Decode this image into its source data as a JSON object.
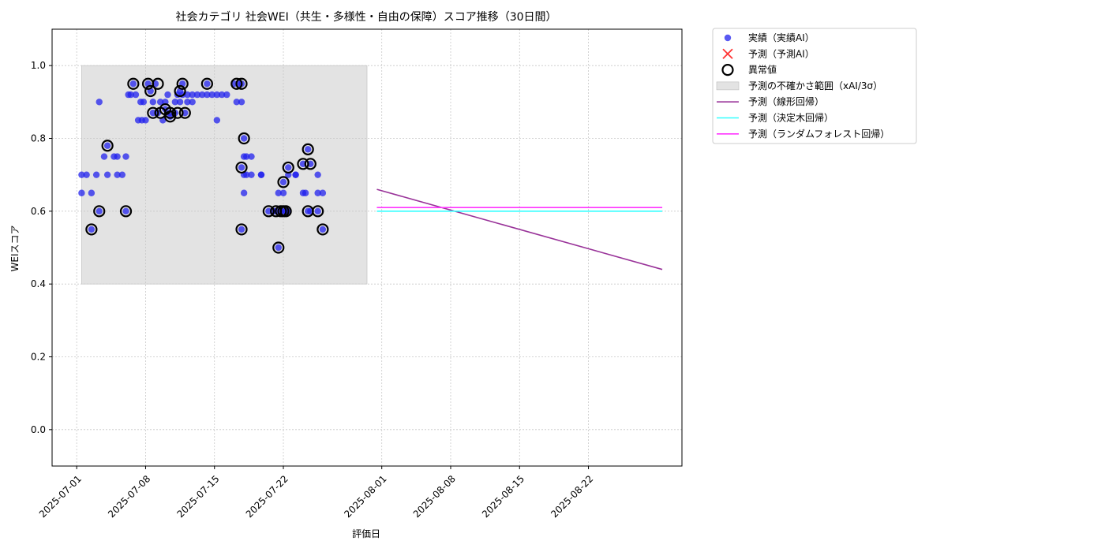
{
  "chart_data": {
    "type": "scatter",
    "title": "社会カテゴリ 社会WEI（共生・多様性・自由の保障）スコア推移（30日間）",
    "xlabel": "評価日",
    "ylabel": "WEIスコア",
    "xlim": [
      "2025-06-28",
      "2025-09-01"
    ],
    "ylim": [
      -0.1,
      1.1
    ],
    "x_ticks": [
      "2025-07-01",
      "2025-07-08",
      "2025-07-15",
      "2025-07-22",
      "2025-08-01",
      "2025-08-08",
      "2025-08-15",
      "2025-08-22"
    ],
    "y_ticks": [
      "0.0",
      "0.2",
      "0.4",
      "0.6",
      "0.8",
      "1.0"
    ],
    "grid": true,
    "legend_position": "outside-top-right",
    "colors": {
      "actual": "#2222ee",
      "forecast": "#ff3333",
      "anomaly": "#000000",
      "band": "#d9d9d9",
      "linear": "#993399",
      "tree": "#33ffff",
      "forest": "#ff33ff"
    },
    "legend": [
      {
        "label": "実績（実績AI）",
        "kind": "dot",
        "color_key": "actual"
      },
      {
        "label": "予測（予測AI）",
        "kind": "cross",
        "color_key": "forecast"
      },
      {
        "label": "異常値",
        "kind": "ring",
        "color_key": "anomaly"
      },
      {
        "label": "予測の不確かさ範囲（xAI/3σ）",
        "kind": "band",
        "color_key": "band"
      },
      {
        "label": "予測（線形回帰）",
        "kind": "line",
        "color_key": "linear"
      },
      {
        "label": "予測（決定木回帰）",
        "kind": "line",
        "color_key": "tree"
      },
      {
        "label": "予測（ランダムフォレスト回帰）",
        "kind": "line",
        "color_key": "forest"
      }
    ],
    "uncertainty_band": {
      "x_start": "2025-07-01T12:00",
      "x_end": "2025-07-30T12:00",
      "y_low": 0.4,
      "y_high": 1.0
    },
    "actual_points": [
      [
        "2025-07-01T12:00",
        0.7
      ],
      [
        "2025-07-01T12:00",
        0.65
      ],
      [
        "2025-07-02T00:00",
        0.7
      ],
      [
        "2025-07-02T12:00",
        0.65
      ],
      [
        "2025-07-02T12:00",
        0.55
      ],
      [
        "2025-07-03T00:00",
        0.7
      ],
      [
        "2025-07-03T07:00",
        0.9
      ],
      [
        "2025-07-03T07:00",
        0.6
      ],
      [
        "2025-07-03T19:00",
        0.75
      ],
      [
        "2025-07-04T03:00",
        0.7
      ],
      [
        "2025-07-04T03:00",
        0.78
      ],
      [
        "2025-07-04T19:00",
        0.75
      ],
      [
        "2025-07-05T03:00",
        0.7
      ],
      [
        "2025-07-05T03:00",
        0.75
      ],
      [
        "2025-07-05T15:00",
        0.7
      ],
      [
        "2025-07-06T00:00",
        0.75
      ],
      [
        "2025-07-06T00:00",
        0.6
      ],
      [
        "2025-07-06T06:00",
        0.92
      ],
      [
        "2025-07-06T12:00",
        0.92
      ],
      [
        "2025-07-06T18:00",
        0.95
      ],
      [
        "2025-07-07T00:00",
        0.92
      ],
      [
        "2025-07-07T06:00",
        0.85
      ],
      [
        "2025-07-07T12:00",
        0.9
      ],
      [
        "2025-07-07T15:00",
        0.85
      ],
      [
        "2025-07-07T19:00",
        0.9
      ],
      [
        "2025-07-08T00:00",
        0.85
      ],
      [
        "2025-07-08T06:00",
        0.95
      ],
      [
        "2025-07-08T12:00",
        0.93
      ],
      [
        "2025-07-08T18:00",
        0.9
      ],
      [
        "2025-07-08T18:00",
        0.87
      ],
      [
        "2025-07-09T00:00",
        0.95
      ],
      [
        "2025-07-09T06:00",
        0.87
      ],
      [
        "2025-07-09T12:00",
        0.9
      ],
      [
        "2025-07-09T18:00",
        0.85
      ],
      [
        "2025-07-10T00:00",
        0.88
      ],
      [
        "2025-07-10T00:00",
        0.9
      ],
      [
        "2025-07-10T06:00",
        0.92
      ],
      [
        "2025-07-10T12:00",
        0.87
      ],
      [
        "2025-07-10T12:00",
        0.86
      ],
      [
        "2025-07-11T00:00",
        0.9
      ],
      [
        "2025-07-11T00:00",
        0.87
      ],
      [
        "2025-07-11T06:00",
        0.92
      ],
      [
        "2025-07-11T12:00",
        0.93
      ],
      [
        "2025-07-11T12:00",
        0.9
      ],
      [
        "2025-07-11T18:00",
        0.95
      ],
      [
        "2025-07-11T18:00",
        0.92
      ],
      [
        "2025-07-12T00:00",
        0.87
      ],
      [
        "2025-07-12T06:00",
        0.92
      ],
      [
        "2025-07-12T06:00",
        0.9
      ],
      [
        "2025-07-12T18:00",
        0.92
      ],
      [
        "2025-07-12T18:00",
        0.9
      ],
      [
        "2025-07-13T06:00",
        0.92
      ],
      [
        "2025-07-13T18:00",
        0.92
      ],
      [
        "2025-07-14T06:00",
        0.95
      ],
      [
        "2025-07-14T06:00",
        0.92
      ],
      [
        "2025-07-14T18:00",
        0.92
      ],
      [
        "2025-07-15T06:00",
        0.85
      ],
      [
        "2025-07-15T06:00",
        0.92
      ],
      [
        "2025-07-15T18:00",
        0.92
      ],
      [
        "2025-07-16T06:00",
        0.92
      ],
      [
        "2025-07-17T00:00",
        0.95
      ],
      [
        "2025-07-17T06:00",
        0.9
      ],
      [
        "2025-07-17T12:00",
        0.95
      ],
      [
        "2025-07-17T18:00",
        0.95
      ],
      [
        "2025-07-17T18:00",
        0.9
      ],
      [
        "2025-07-17T18:00",
        0.72
      ],
      [
        "2025-07-17T18:00",
        0.55
      ],
      [
        "2025-07-18T00:00",
        0.8
      ],
      [
        "2025-07-18T00:00",
        0.75
      ],
      [
        "2025-07-18T00:00",
        0.7
      ],
      [
        "2025-07-18T00:00",
        0.65
      ],
      [
        "2025-07-18T06:00",
        0.7
      ],
      [
        "2025-07-18T06:00",
        0.75
      ],
      [
        "2025-07-18T18:00",
        0.75
      ],
      [
        "2025-07-18T18:00",
        0.7
      ],
      [
        "2025-07-19T18:00",
        0.7
      ],
      [
        "2025-07-19T18:00",
        0.7
      ],
      [
        "2025-07-20T12:00",
        0.6
      ],
      [
        "2025-07-21T00:00",
        0.6
      ],
      [
        "2025-07-21T06:00",
        0.6
      ],
      [
        "2025-07-21T12:00",
        0.65
      ],
      [
        "2025-07-21T12:00",
        0.5
      ],
      [
        "2025-07-21T18:00",
        0.6
      ],
      [
        "2025-07-22T00:00",
        0.65
      ],
      [
        "2025-07-22T00:00",
        0.6
      ],
      [
        "2025-07-22T00:00",
        0.68
      ],
      [
        "2025-07-22T06:00",
        0.6
      ],
      [
        "2025-07-22T12:00",
        0.7
      ],
      [
        "2025-07-22T12:00",
        0.72
      ],
      [
        "2025-07-22T12:00",
        0.6
      ],
      [
        "2025-07-23T06:00",
        0.7
      ],
      [
        "2025-07-23T06:00",
        0.7
      ],
      [
        "2025-07-24T00:00",
        0.73
      ],
      [
        "2025-07-24T00:00",
        0.65
      ],
      [
        "2025-07-24T06:00",
        0.65
      ],
      [
        "2025-07-24T12:00",
        0.6
      ],
      [
        "2025-07-24T12:00",
        0.77
      ],
      [
        "2025-07-24T18:00",
        0.73
      ],
      [
        "2025-07-24T18:00",
        0.6
      ],
      [
        "2025-07-25T12:00",
        0.7
      ],
      [
        "2025-07-25T12:00",
        0.65
      ],
      [
        "2025-07-25T12:00",
        0.6
      ],
      [
        "2025-07-26T00:00",
        0.55
      ],
      [
        "2025-07-26T00:00",
        0.65
      ]
    ],
    "anomaly_points": [
      [
        "2025-07-02T12:00",
        0.55
      ],
      [
        "2025-07-03T07:00",
        0.6
      ],
      [
        "2025-07-04T03:00",
        0.78
      ],
      [
        "2025-07-06T00:00",
        0.6
      ],
      [
        "2025-07-06T18:00",
        0.95
      ],
      [
        "2025-07-08T06:00",
        0.95
      ],
      [
        "2025-07-08T12:00",
        0.93
      ],
      [
        "2025-07-08T18:00",
        0.87
      ],
      [
        "2025-07-09T06:00",
        0.95
      ],
      [
        "2025-07-09T12:00",
        0.87
      ],
      [
        "2025-07-10T00:00",
        0.88
      ],
      [
        "2025-07-10T12:00",
        0.87
      ],
      [
        "2025-07-10T12:00",
        0.86
      ],
      [
        "2025-07-11T06:00",
        0.87
      ],
      [
        "2025-07-11T12:00",
        0.93
      ],
      [
        "2025-07-11T18:00",
        0.95
      ],
      [
        "2025-07-12T00:00",
        0.87
      ],
      [
        "2025-07-14T06:00",
        0.95
      ],
      [
        "2025-07-17T06:00",
        0.95
      ],
      [
        "2025-07-17T18:00",
        0.95
      ],
      [
        "2025-07-18T00:00",
        0.8
      ],
      [
        "2025-07-17T18:00",
        0.72
      ],
      [
        "2025-07-17T18:00",
        0.55
      ],
      [
        "2025-07-20T12:00",
        0.6
      ],
      [
        "2025-07-21T06:00",
        0.6
      ],
      [
        "2025-07-21T12:00",
        0.5
      ],
      [
        "2025-07-21T18:00",
        0.6
      ],
      [
        "2025-07-22T00:00",
        0.6
      ],
      [
        "2025-07-22T00:00",
        0.68
      ],
      [
        "2025-07-22T06:00",
        0.6
      ],
      [
        "2025-07-22T12:00",
        0.72
      ],
      [
        "2025-07-24T00:00",
        0.73
      ],
      [
        "2025-07-24T12:00",
        0.6
      ],
      [
        "2025-07-24T12:00",
        0.77
      ],
      [
        "2025-07-24T18:00",
        0.73
      ],
      [
        "2025-07-25T12:00",
        0.6
      ],
      [
        "2025-07-26T00:00",
        0.55
      ]
    ],
    "forecast_lines": [
      {
        "label_index": 4,
        "color_key": "linear",
        "x": [
          "2025-07-31T12:00",
          "2025-08-29T12:00"
        ],
        "y": [
          0.66,
          0.44
        ]
      },
      {
        "label_index": 5,
        "color_key": "tree",
        "x": [
          "2025-07-31T12:00",
          "2025-08-29T12:00"
        ],
        "y": [
          0.6,
          0.6
        ]
      },
      {
        "label_index": 6,
        "color_key": "forest",
        "x": [
          "2025-07-31T12:00",
          "2025-08-29T12:00"
        ],
        "y": [
          0.61,
          0.61
        ]
      }
    ]
  }
}
